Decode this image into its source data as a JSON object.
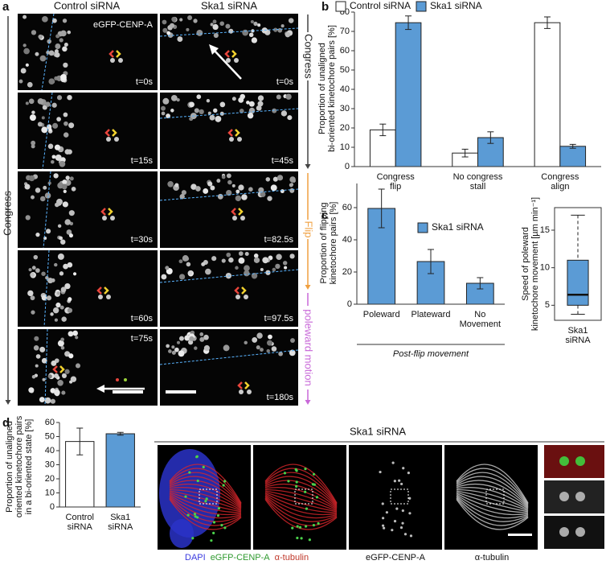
{
  "panel_a": {
    "label": "a",
    "column_titles": [
      "Control siRNA",
      "Ska1 siRNA"
    ],
    "marker_label": "eGFP-CENP-A",
    "left_times": [
      "t=0s",
      "t=15s",
      "t=30s",
      "t=60s",
      "t=75s"
    ],
    "right_times": [
      "t=0s",
      "t=45s",
      "t=82.5s",
      "t=97.5s",
      "t=180s"
    ],
    "left_phase": "Congress",
    "right_phases": [
      "Congress",
      "Flip",
      "poleward motion"
    ]
  },
  "chart_data": [
    {
      "type": "bar",
      "panel_label": "b",
      "ylabel": [
        "Proportion of unaligned",
        "bi-oriented kinetochore pairs [%]"
      ],
      "categories": [
        [
          "Congress",
          "flip"
        ],
        [
          "No congress",
          "stall"
        ],
        [
          "Congress",
          "align"
        ]
      ],
      "series": [
        {
          "name": "Control siRNA",
          "color": "#ffffff",
          "values": [
            19,
            7,
            74.5
          ],
          "errors": [
            3,
            2,
            3
          ]
        },
        {
          "name": "Ska1 siRNA",
          "color": "#5b9bd5",
          "values": [
            74.5,
            15,
            10.5
          ],
          "errors": [
            3.5,
            3,
            1
          ]
        }
      ],
      "ylim": [
        0,
        80
      ],
      "yticks": [
        0,
        10,
        20,
        30,
        40,
        50,
        60,
        70,
        80
      ],
      "legend": "top"
    },
    {
      "type": "bar",
      "panel_label": "c",
      "ylabel": [
        "Proportion of flipping",
        "kinetochore pairs [%]"
      ],
      "categories": [
        [
          "Poleward"
        ],
        [
          "Plateward"
        ],
        [
          "No",
          "Movement"
        ]
      ],
      "series": [
        {
          "name": "Ska1 siRNA",
          "color": "#5b9bd5",
          "values": [
            59.5,
            26.5,
            13
          ],
          "errors": [
            12,
            7.5,
            3.5
          ]
        }
      ],
      "xlabel": "Post-flip movement",
      "ylim": [
        0,
        75
      ],
      "yticks": [
        0,
        20,
        40,
        60
      ],
      "legend": "top-right"
    },
    {
      "type": "box",
      "ylabel": [
        "Speed of poleward",
        "kinetochore movement [µm min⁻¹]"
      ],
      "categories": [
        [
          "Ska1",
          "siRNA"
        ]
      ],
      "boxes": [
        {
          "whislo": 3.8,
          "q1": 5,
          "med": 6.4,
          "q3": 11,
          "whishi": 17
        }
      ],
      "color": "#5b9bd5",
      "ylim": [
        3,
        18
      ],
      "yticks": [
        5,
        10,
        15
      ]
    },
    {
      "type": "bar",
      "panel_label": "d",
      "ylabel": [
        "Proportion of unaligned",
        "oriented kinetochore pairs",
        "in a bi-oriented state [%]"
      ],
      "categories": [
        [
          "Control",
          "siRNA"
        ],
        [
          "Ska1",
          "siRNA"
        ]
      ],
      "values": [
        46.5,
        52
      ],
      "errors": [
        9.5,
        1
      ],
      "colors": [
        "#ffffff",
        "#5b9bd5"
      ],
      "ylim": [
        0,
        60
      ],
      "yticks": [
        0,
        10,
        20,
        30,
        40,
        50,
        60
      ]
    }
  ],
  "panel_d_images": {
    "title": "Ska1 siRNA",
    "merge_caption": [
      "DAPI",
      "eGFP-CENP-A",
      "α-tubulin"
    ],
    "captions": [
      "eGFP-CENP-A",
      "α-tubulin"
    ]
  }
}
